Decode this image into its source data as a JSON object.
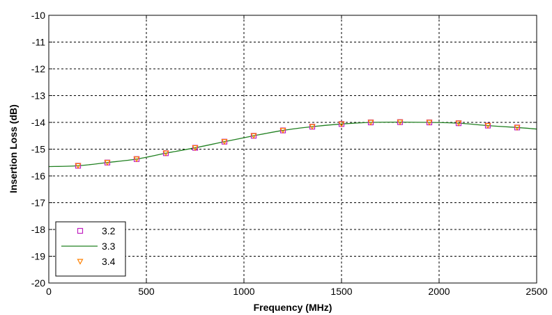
{
  "chart_data": {
    "type": "line",
    "title": "",
    "xlabel": "Frequency (MHz)",
    "ylabel": "Insertion Loss (dB)",
    "xlim": [
      0,
      2500
    ],
    "ylim": [
      -20,
      -10
    ],
    "x_ticks": [
      0,
      500,
      1000,
      1500,
      2000,
      2500
    ],
    "y_ticks": [
      -10,
      -11,
      -12,
      -13,
      -14,
      -15,
      -16,
      -17,
      -18,
      -19,
      -20
    ],
    "grid": true,
    "legend_position": "bottom-left",
    "x": [
      0,
      150,
      300,
      450,
      600,
      750,
      900,
      1050,
      1200,
      1350,
      1500,
      1650,
      1800,
      1950,
      2100,
      2250,
      2400,
      2500
    ],
    "series": [
      {
        "name": "3.2",
        "style": "markers",
        "marker": "square",
        "color": "#c020c0",
        "x": [
          150,
          300,
          450,
          600,
          750,
          900,
          1050,
          1200,
          1350,
          1500,
          1650,
          1800,
          1950,
          2100,
          2250,
          2400
        ],
        "values": [
          -15.62,
          -15.5,
          -15.37,
          -15.15,
          -14.95,
          -14.72,
          -14.5,
          -14.3,
          -14.16,
          -14.06,
          -14.0,
          -13.99,
          -14.0,
          -14.03,
          -14.12,
          -14.19
        ]
      },
      {
        "name": "3.3",
        "style": "line",
        "color": "#208020",
        "x": [
          0,
          150,
          300,
          450,
          600,
          750,
          900,
          1050,
          1200,
          1350,
          1500,
          1650,
          1800,
          1950,
          2100,
          2250,
          2400,
          2500
        ],
        "values": [
          -15.65,
          -15.62,
          -15.5,
          -15.37,
          -15.15,
          -14.95,
          -14.72,
          -14.5,
          -14.3,
          -14.16,
          -14.06,
          -14.0,
          -13.99,
          -14.0,
          -14.03,
          -14.12,
          -14.19,
          -14.25
        ]
      },
      {
        "name": "3.4",
        "style": "markers",
        "marker": "triangle-down",
        "color": "#ff8000",
        "x": [
          150,
          300,
          450,
          600,
          750,
          900,
          1050,
          1200,
          1350,
          1500,
          1650,
          1800,
          1950,
          2100,
          2250,
          2400
        ],
        "values": [
          -15.62,
          -15.5,
          -15.37,
          -15.15,
          -14.95,
          -14.72,
          -14.5,
          -14.3,
          -14.16,
          -14.06,
          -14.0,
          -13.99,
          -14.0,
          -14.03,
          -14.12,
          -14.19
        ]
      }
    ]
  }
}
